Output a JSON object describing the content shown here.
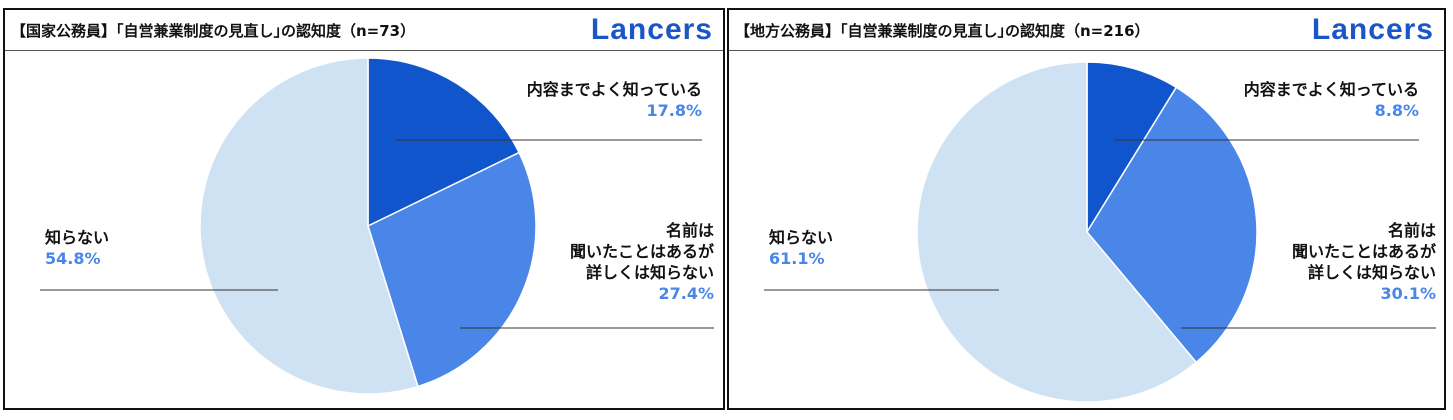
{
  "brand": {
    "name": "Lancers",
    "color": "#1a56c8"
  },
  "chart_data": [
    {
      "type": "pie",
      "title": "【国家公務員】｢自営兼業制度の見直し｣の認知度（n=73）",
      "slices": [
        {
          "label": [
            "内容までよく知っている"
          ],
          "value": 17.8,
          "display": "17.8%",
          "color": "#1155cc"
        },
        {
          "label": [
            "名前は",
            "聞いたことはあるが",
            "詳しくは知らない"
          ],
          "value": 27.4,
          "display": "27.4%",
          "color": "#4a86e8"
        },
        {
          "label": [
            "知らない"
          ],
          "value": 54.8,
          "display": "54.8%",
          "color": "#cfe2f3"
        }
      ]
    },
    {
      "type": "pie",
      "title": "【地方公務員】｢自営兼業制度の見直し｣の認知度（n=216）",
      "slices": [
        {
          "label": [
            "内容までよく知っている"
          ],
          "value": 8.8,
          "display": "8.8%",
          "color": "#1155cc"
        },
        {
          "label": [
            "名前は",
            "聞いたことはあるが",
            "詳しくは知らない"
          ],
          "value": 30.1,
          "display": "30.1%",
          "color": "#4a86e8"
        },
        {
          "label": [
            "知らない"
          ],
          "value": 61.1,
          "display": "61.1%",
          "color": "#cfe2f3"
        }
      ]
    }
  ],
  "colors": {
    "value_text": "#4a86e8",
    "label_text": "#111111",
    "leader_line": "#333333"
  }
}
